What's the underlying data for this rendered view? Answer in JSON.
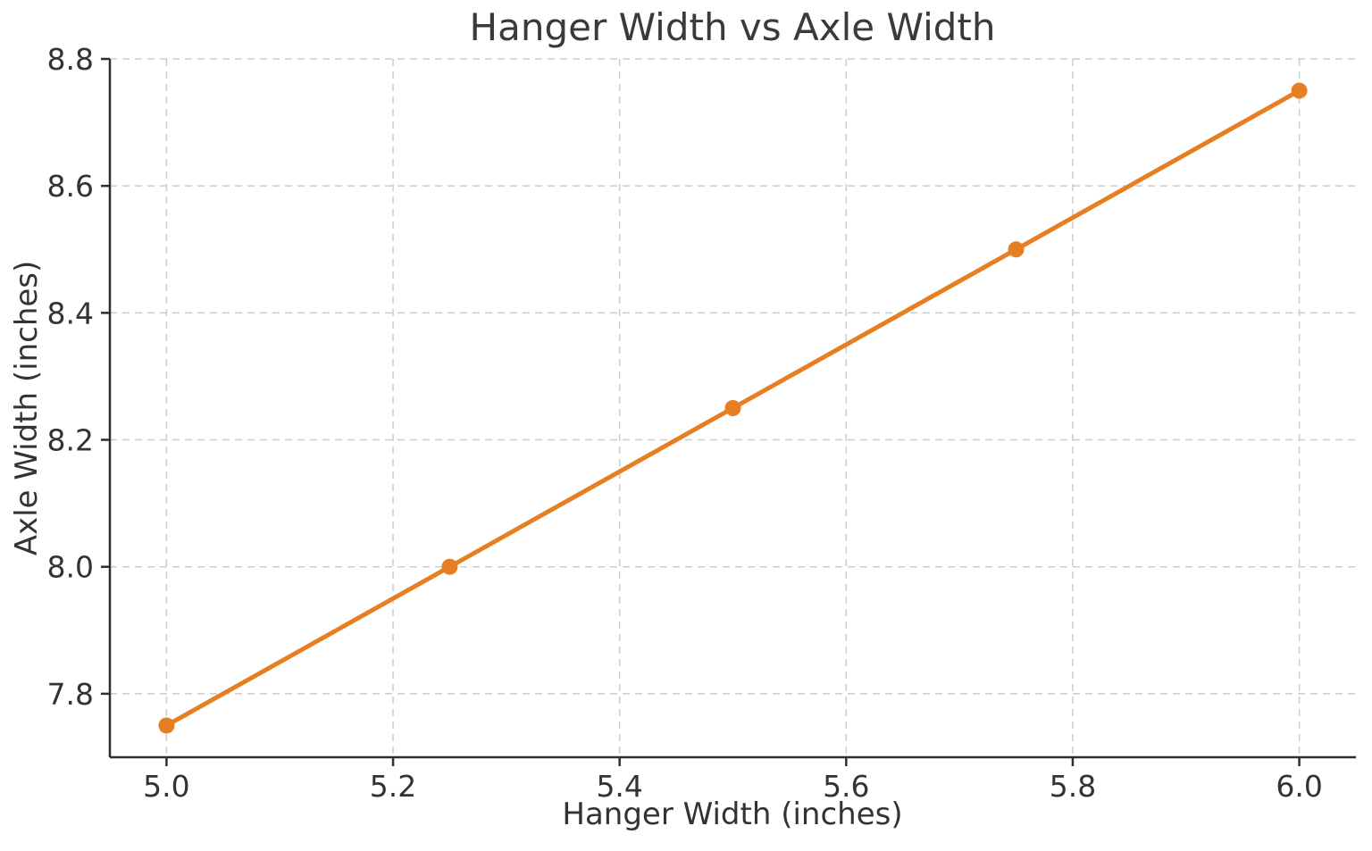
{
  "chart_data": {
    "type": "line",
    "title": "Hanger Width vs Axle Width",
    "xlabel": "Hanger Width (inches)",
    "ylabel": "Axle Width (inches)",
    "x": [
      5.0,
      5.25,
      5.5,
      5.75,
      6.0
    ],
    "y": [
      7.75,
      8.0,
      8.25,
      8.5,
      8.75
    ],
    "xlim": [
      4.95,
      6.05
    ],
    "ylim": [
      7.7,
      8.8
    ],
    "xticks": [
      5.0,
      5.2,
      5.4,
      5.6,
      5.8,
      6.0
    ],
    "yticks": [
      7.8,
      8.0,
      8.2,
      8.4,
      8.6,
      8.8
    ],
    "xtick_labels": [
      "5.0",
      "5.2",
      "5.4",
      "5.6",
      "5.8",
      "6.0"
    ],
    "ytick_labels": [
      "7.8",
      "8.0",
      "8.2",
      "8.4",
      "8.6",
      "8.8"
    ],
    "grid": true,
    "grid_style": "dashed",
    "legend": "none",
    "line_color": "#e67e22",
    "line_width": 5,
    "marker": "circle",
    "marker_size": 9,
    "grid_color": "#cccccc",
    "spine_color": "#2e2e2e",
    "text_color": "#333333",
    "background": "#ffffff"
  }
}
